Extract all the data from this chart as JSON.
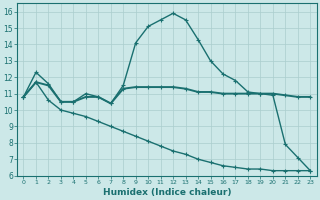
{
  "xlabel": "Humidex (Indice chaleur)",
  "xlim": [
    -0.5,
    23.5
  ],
  "ylim": [
    6,
    16.5
  ],
  "yticks": [
    6,
    7,
    8,
    9,
    10,
    11,
    12,
    13,
    14,
    15,
    16
  ],
  "xticks": [
    0,
    1,
    2,
    3,
    4,
    5,
    6,
    7,
    8,
    9,
    10,
    11,
    12,
    13,
    14,
    15,
    16,
    17,
    18,
    19,
    20,
    21,
    22,
    23
  ],
  "background_color": "#cce8e8",
  "grid_color": "#aacece",
  "line_color": "#1a7070",
  "line_upper_x": [
    0,
    1,
    2,
    3,
    4,
    5,
    6,
    7,
    8,
    9,
    10,
    11,
    12,
    13,
    14,
    15,
    16,
    17,
    18,
    19,
    20,
    21,
    22,
    23
  ],
  "line_upper_y": [
    10.8,
    12.3,
    11.6,
    10.5,
    10.5,
    11.0,
    10.8,
    10.4,
    11.5,
    14.1,
    15.1,
    15.5,
    15.9,
    15.5,
    14.3,
    13.0,
    12.2,
    11.8,
    11.1,
    11.0,
    10.9,
    7.9,
    7.1,
    6.3
  ],
  "line_mid_x": [
    0,
    1,
    2,
    3,
    4,
    5,
    6,
    7,
    8,
    9,
    10,
    11,
    12,
    13,
    14,
    15,
    16,
    17,
    18,
    19,
    20,
    21,
    22,
    23
  ],
  "line_mid_y": [
    10.8,
    11.7,
    11.5,
    10.5,
    10.5,
    10.8,
    10.8,
    10.4,
    11.3,
    11.4,
    11.4,
    11.4,
    11.4,
    11.3,
    11.1,
    11.1,
    11.0,
    11.0,
    11.0,
    11.0,
    11.0,
    10.9,
    10.8,
    10.8
  ],
  "line_lower_x": [
    0,
    1,
    2,
    3,
    4,
    5,
    6,
    7,
    8,
    9,
    10,
    11,
    12,
    13,
    14,
    15,
    16,
    17,
    18,
    19,
    20,
    21,
    22,
    23
  ],
  "line_lower_y": [
    10.8,
    11.7,
    10.6,
    10.0,
    9.8,
    9.6,
    9.3,
    9.0,
    8.7,
    8.4,
    8.1,
    7.8,
    7.5,
    7.3,
    7.0,
    6.8,
    6.6,
    6.5,
    6.4,
    6.4,
    6.3,
    6.3,
    6.3,
    6.3
  ]
}
